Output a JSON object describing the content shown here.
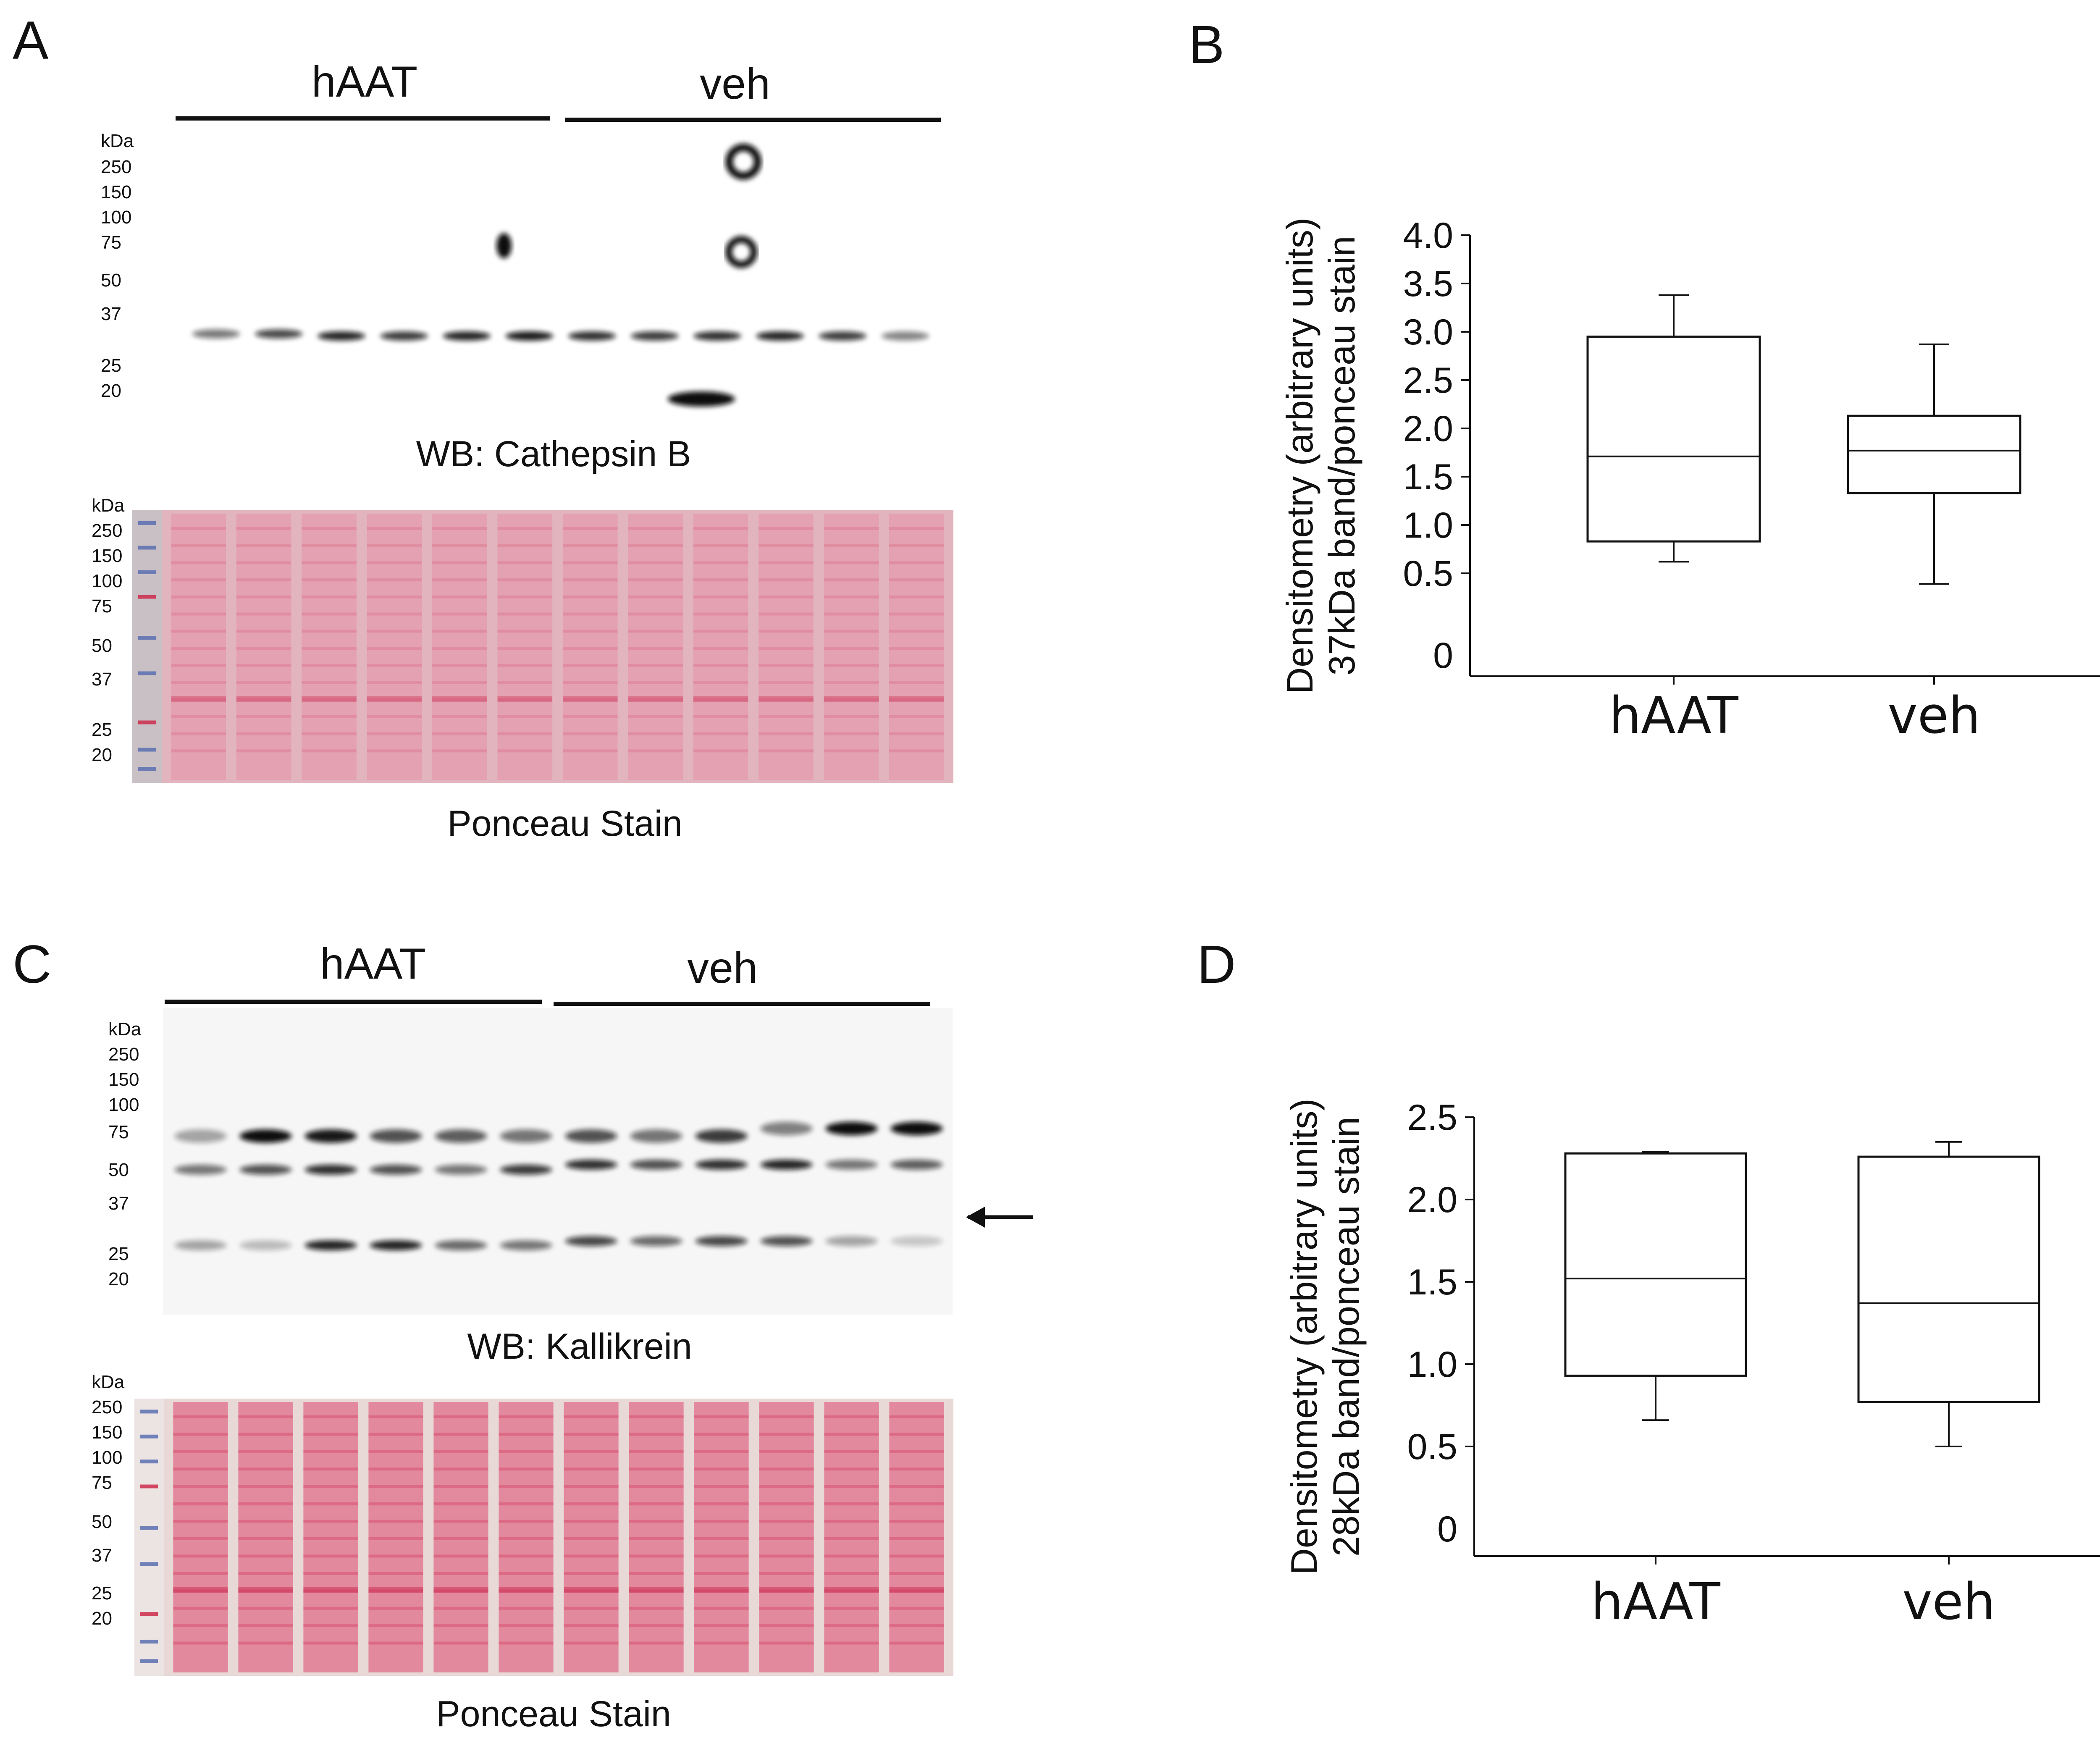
{
  "panels": {
    "A": {
      "letter": "A",
      "groups": [
        "hAAT",
        "veh"
      ],
      "kda_label": "kDa",
      "markers": [
        "250",
        "150",
        "100",
        "75",
        "50",
        "37",
        "25",
        "20"
      ],
      "wb_caption": "WB:  Cathepsin B",
      "ponceau_kda_label": "kDa",
      "ponceau_markers": [
        "250",
        "150",
        "100",
        "75",
        "50",
        "37",
        "25",
        "20"
      ],
      "ponceau_caption": "Ponceau Stain",
      "lane_count": 12
    },
    "C": {
      "letter": "C",
      "groups": [
        "hAAT",
        "veh"
      ],
      "kda_label": "kDa",
      "markers": [
        "250",
        "150",
        "100",
        "75",
        "50",
        "37",
        "25",
        "20"
      ],
      "wb_caption": "WB:  Kallikrein",
      "ponceau_kda_label": "kDa",
      "ponceau_markers": [
        "250",
        "150",
        "100",
        "75",
        "50",
        "37",
        "25",
        "20"
      ],
      "ponceau_caption": "Ponceau Stain",
      "lane_count": 12
    },
    "B": {
      "letter": "B"
    },
    "D": {
      "letter": "D"
    }
  },
  "chart_data": [
    {
      "panel": "B",
      "type": "box",
      "ylabel_line1": "Densitometry (arbitrary units)",
      "ylabel_line2": "37kDa band/ponceau stain",
      "yticks": [
        "4.0",
        "3.5",
        "3.0",
        "2.5",
        "2.0",
        "1.5",
        "1.0",
        "0.5",
        "0"
      ],
      "ytick_values": [
        4.0,
        3.5,
        3.0,
        2.5,
        2.0,
        1.5,
        1.0,
        0.5,
        0
      ],
      "ylim": [
        0,
        4.0
      ],
      "categories": [
        "hAAT",
        "veh"
      ],
      "boxes": [
        {
          "name": "hAAT",
          "min": 0.62,
          "q1": 0.83,
          "median": 1.71,
          "q3": 2.95,
          "max": 3.38
        },
        {
          "name": "veh",
          "min": 0.39,
          "q1": 1.33,
          "median": 1.77,
          "q3": 2.13,
          "max": 2.87
        }
      ]
    },
    {
      "panel": "D",
      "type": "box",
      "ylabel_line1": "Densitometry (arbitrary units)",
      "ylabel_line2": "28kDa band/ponceau stain",
      "yticks": [
        "2.5",
        "2.0",
        "1.5",
        "1.0",
        "0.5",
        "0"
      ],
      "ytick_values": [
        2.5,
        2.0,
        1.5,
        1.0,
        0.5,
        0
      ],
      "ylim": [
        0,
        2.5
      ],
      "categories": [
        "hAAT",
        "veh"
      ],
      "boxes": [
        {
          "name": "hAAT",
          "min": 0.66,
          "q1": 0.93,
          "median": 1.52,
          "q3": 2.28,
          "max": 2.29
        },
        {
          "name": "veh",
          "min": 0.5,
          "q1": 0.77,
          "median": 1.37,
          "q3": 2.26,
          "max": 2.35
        }
      ]
    }
  ]
}
